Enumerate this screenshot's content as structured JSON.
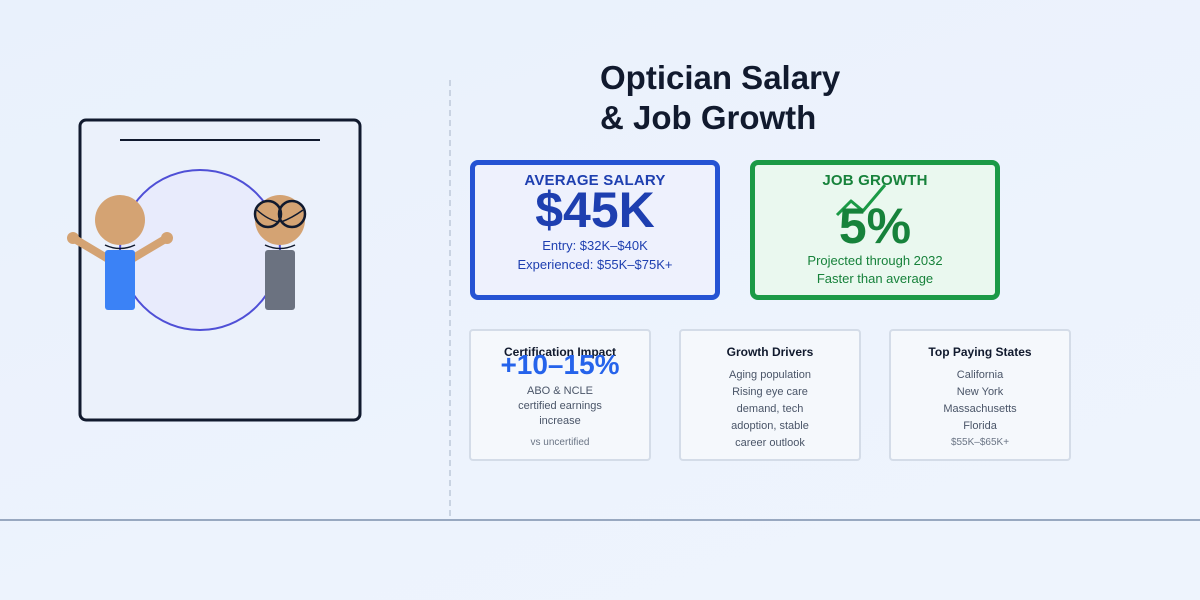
{
  "title": {
    "line1": "Optician Salary",
    "line2": "& Job Growth"
  },
  "salary_card": {
    "label": "AVERAGE SALARY",
    "value": "$45K",
    "entry": "Entry: $32K–$40K",
    "experienced": "Experienced: $55K–$75K+"
  },
  "growth_card": {
    "label": "JOB GROWTH",
    "value": "5%",
    "projection": "Projected through 2032",
    "comparison": "Faster than average"
  },
  "certification_card": {
    "heading": "Certification Impact",
    "value": "+10–15%",
    "lines": [
      "ABO & NCLE",
      "certified earnings",
      "increase"
    ],
    "note": "vs uncertified"
  },
  "drivers_card": {
    "heading": "Growth Drivers",
    "lines": [
      "Aging population",
      "Rising eye care",
      "demand, tech",
      "adoption, stable",
      "career outlook"
    ]
  },
  "states_card": {
    "heading": "Top Paying States",
    "lines": [
      "California",
      "New York",
      "Massachusetts",
      "Florida"
    ],
    "note": "$55K–$65K+"
  },
  "colors": {
    "salary_accent": "#2553d3",
    "growth_accent": "#1b9a46",
    "certification_accent": "#2563eb",
    "figure_shirt_blue": "#3b82f6",
    "figure_shirt_gray": "#6b7280",
    "skin": "#d4a373"
  },
  "icons": {
    "trend": "trend-up-arrow-icon",
    "glasses": "eyeglasses-icon"
  }
}
